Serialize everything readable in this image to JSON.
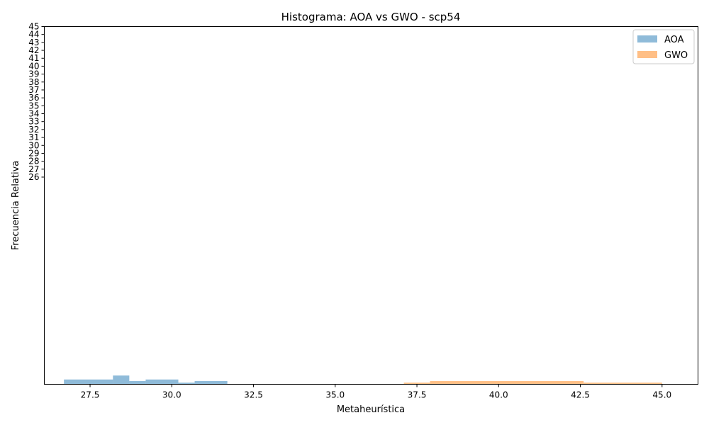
{
  "chart_data": {
    "type": "bar",
    "title": "Histograma: AOA vs GWO - scp54",
    "xlabel": "Metaheurística",
    "ylabel": "Frecuencia Relativa",
    "xlim": [
      26.1,
      46.1
    ],
    "x_ticks": [
      "27.5",
      "30.0",
      "32.5",
      "35.0",
      "37.5",
      "40.0",
      "42.5",
      "45.0"
    ],
    "y_ticks": [
      "26",
      "27",
      "28",
      "29",
      "30",
      "31",
      "32",
      "33",
      "34",
      "35",
      "36",
      "37",
      "38",
      "39",
      "40",
      "41",
      "42",
      "43",
      "44",
      "45"
    ],
    "legend_position": "top-right",
    "series": [
      {
        "name": "AOA",
        "color": "#1f77b4",
        "alpha": 0.5,
        "bins": [
          {
            "x0": 26.7,
            "x1": 28.2,
            "h": 0.006
          },
          {
            "x0": 28.2,
            "x1": 28.7,
            "h": 0.011
          },
          {
            "x0": 28.7,
            "x1": 29.2,
            "h": 0.004
          },
          {
            "x0": 29.2,
            "x1": 30.2,
            "h": 0.006
          },
          {
            "x0": 30.2,
            "x1": 30.7,
            "h": 0.002
          },
          {
            "x0": 30.7,
            "x1": 31.7,
            "h": 0.004
          }
        ]
      },
      {
        "name": "GWO",
        "color": "#ff7f0e",
        "alpha": 0.5,
        "bins": [
          {
            "x0": 37.1,
            "x1": 37.9,
            "h": 0.002
          },
          {
            "x0": 37.9,
            "x1": 42.6,
            "h": 0.004
          },
          {
            "x0": 42.6,
            "x1": 45.0,
            "h": 0.002
          }
        ]
      }
    ]
  }
}
